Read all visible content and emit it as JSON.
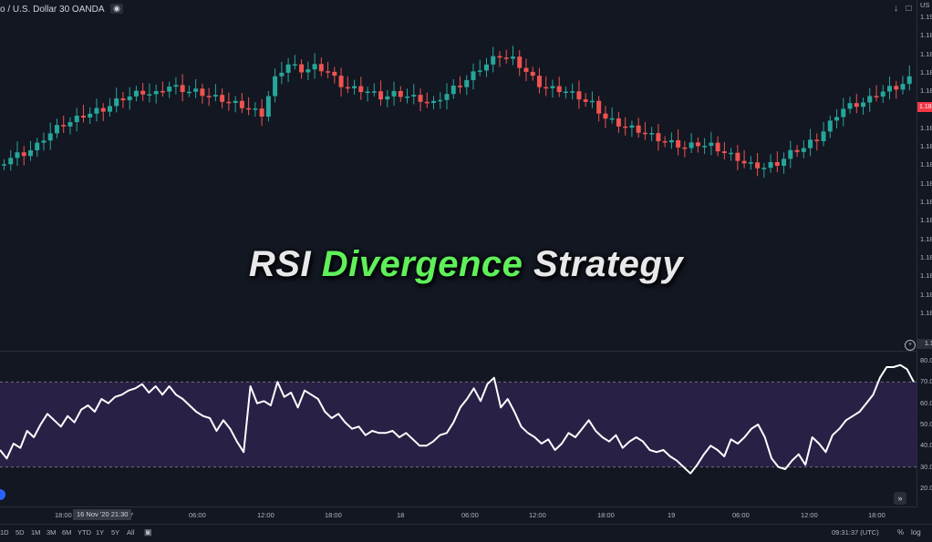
{
  "header": {
    "symbol_title": "o / U.S. Dollar   30   OANDA",
    "eye_icon": "eye-icon",
    "arrow_down_icon": "arrow-down-icon",
    "maximize_icon": "maximize-icon",
    "axis_currency": "US"
  },
  "headline": {
    "before": "RSI ",
    "highlight": "Divergence",
    "after": " Strategy"
  },
  "price_axis": {
    "ticks": [
      "1.19",
      "1.18",
      "1.18",
      "1.18",
      "1.18",
      "1.18",
      "1.18",
      "1.18",
      "1.18",
      "1.18",
      "1.18",
      "1.18",
      "1.18",
      "1.18",
      "1.18",
      "1.18",
      "1.18"
    ],
    "last_price": "1.18",
    "cursor_price": "1.18"
  },
  "rsi_axis": {
    "ticks": [
      "80.0",
      "70.0",
      "60.0",
      "50.0",
      "40.0",
      "30.0",
      "20.0"
    ]
  },
  "time_axis": {
    "labels": [
      "18:00",
      "7",
      "06:00",
      "12:00",
      "18:00",
      "18",
      "06:00",
      "12:00",
      "18:00",
      "19",
      "06:00",
      "12:00",
      "18:00"
    ],
    "highlighted": "16 Nov '20   21:30"
  },
  "bottom_bar": {
    "ranges": [
      "1D",
      "5D",
      "1M",
      "3M",
      "6M",
      "YTD",
      "1Y",
      "5Y",
      "All"
    ],
    "clock": "09:31:37 (UTC)",
    "percent": "%",
    "log": "log"
  },
  "colors": {
    "background": "#131722",
    "up_candle": "#26a69a",
    "down_candle": "#ef5350",
    "rsi_band": "#2a1f45",
    "rsi_line": "#ffffff",
    "highlight": "#5ff05a"
  },
  "chart_data": [
    {
      "type": "candlestick",
      "title": "EUR/USD 30 OANDA",
      "closes_relative": [
        0.58,
        0.6,
        0.63,
        0.68,
        0.72,
        0.74,
        0.76,
        0.78,
        0.81,
        0.83,
        0.85,
        0.84,
        0.87,
        0.86,
        0.85,
        0.83,
        0.82,
        0.8,
        0.78,
        0.76,
        0.9,
        0.96,
        0.94,
        0.95,
        0.93,
        0.88,
        0.86,
        0.85,
        0.83,
        0.84,
        0.83,
        0.82,
        0.8,
        0.84,
        0.88,
        0.92,
        0.96,
        1.0,
        0.98,
        0.93,
        0.88,
        0.86,
        0.85,
        0.83,
        0.8,
        0.74,
        0.72,
        0.7,
        0.68,
        0.66,
        0.64,
        0.62,
        0.64,
        0.63,
        0.6,
        0.58,
        0.55,
        0.54,
        0.56,
        0.6,
        0.62,
        0.66,
        0.72,
        0.78,
        0.8,
        0.82,
        0.85,
        0.87,
        0.9
      ]
    },
    {
      "type": "line",
      "title": "RSI",
      "ylim": [
        20,
        80
      ],
      "bands": [
        30,
        70
      ],
      "x": [
        0,
        1,
        2,
        3,
        4,
        5,
        6,
        7,
        8,
        9,
        10,
        11,
        12,
        13,
        14,
        15,
        16,
        17,
        18,
        19,
        20,
        21,
        22,
        23,
        24,
        25,
        26,
        27,
        28,
        29,
        30,
        31,
        32,
        33,
        34,
        35,
        36,
        37,
        38,
        39,
        40,
        41,
        42,
        43,
        44,
        45,
        46,
        47,
        48,
        49,
        50,
        51,
        52,
        53,
        54,
        55,
        56,
        57,
        58,
        59,
        60,
        61,
        62,
        63,
        64,
        65,
        66,
        67,
        68,
        69,
        70,
        71,
        72,
        73,
        74,
        75,
        76,
        77,
        78,
        79,
        80,
        81,
        82,
        83,
        84,
        85,
        86,
        87,
        88,
        89,
        90,
        91,
        92,
        93,
        94,
        95,
        96,
        97,
        98,
        99,
        100,
        101,
        102,
        103,
        104,
        105,
        106,
        107,
        108,
        109,
        110,
        111,
        112,
        113,
        114,
        115,
        116,
        117,
        118,
        119,
        120,
        121,
        122,
        123,
        124,
        125,
        126,
        127,
        128,
        129,
        130,
        131,
        132,
        133,
        134,
        135
      ],
      "values": [
        38,
        34,
        41,
        39,
        47,
        44,
        50,
        55,
        52,
        49,
        54,
        51,
        57,
        59,
        56,
        62,
        60,
        63,
        64,
        66,
        67,
        69,
        65,
        68,
        64,
        68,
        64,
        62,
        59,
        56,
        54,
        53,
        47,
        52,
        48,
        42,
        37,
        68,
        60,
        61,
        59,
        70,
        63,
        65,
        58,
        66,
        64,
        62,
        56,
        53,
        55,
        51,
        48,
        49,
        45,
        47,
        46,
        46,
        47,
        44,
        46,
        43,
        40,
        40,
        42,
        45,
        46,
        51,
        58,
        62,
        67,
        61,
        69,
        72,
        58,
        62,
        56,
        49,
        46,
        44,
        41,
        43,
        38,
        41,
        46,
        44,
        48,
        52,
        47,
        44,
        42,
        45,
        39,
        42,
        44,
        42,
        38,
        37,
        38,
        35,
        33,
        30,
        27,
        31,
        36,
        40,
        38,
        35,
        43,
        41,
        44,
        48,
        50,
        44,
        34,
        30,
        29,
        33,
        36,
        31,
        44,
        41,
        37,
        45,
        48,
        52,
        54,
        56,
        60,
        64,
        72,
        77,
        77,
        78,
        76,
        70
      ],
      "hlines": [
        30,
        70
      ]
    }
  ]
}
